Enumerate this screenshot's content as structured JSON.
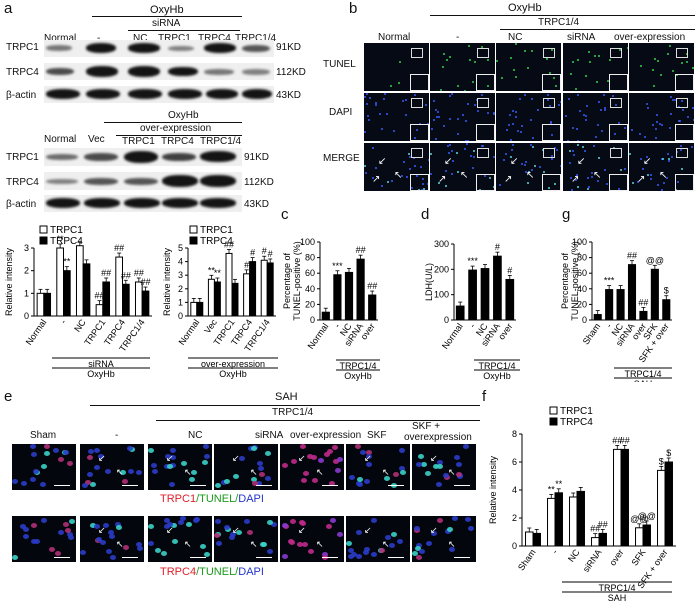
{
  "panels": {
    "a": "a",
    "b": "b",
    "c": "c",
    "d": "d",
    "e": "e",
    "f": "f",
    "g": "g"
  },
  "a_top": {
    "oxyhb": "OxyHb",
    "sirna": "siRNA",
    "lanes": [
      "Normal",
      "-",
      "NC",
      "TRPC1",
      "TRPC4",
      "TRPC1/4"
    ],
    "rows": [
      "TRPC1",
      "TRPC4",
      "β-actin"
    ],
    "kd": [
      "91KD",
      "112KD",
      "43KD"
    ]
  },
  "a_bottom": {
    "oxyhb": "OxyHb",
    "overexp": "over-expression",
    "lanes": [
      "Normal",
      "Vec",
      "TRPC1",
      "TRPC4",
      "TRPC1/4"
    ],
    "rows": [
      "TRPC1",
      "TRPC4",
      "β-actin"
    ],
    "kd": [
      "91KD",
      "112KD",
      "43KD"
    ]
  },
  "b": {
    "oxyhb": "OxyHb",
    "trpc14": "TRPC1/4",
    "cols": [
      "Normal",
      "-",
      "NC",
      "siRNA",
      "over-expression"
    ],
    "rows": [
      "TUNEL",
      "DAPI",
      "MERGE"
    ]
  },
  "e": {
    "sah": "SAH",
    "trpc14": "TRPC1/4",
    "cols": [
      "Sham",
      "-",
      "NC",
      "siRNA",
      "over-expression",
      "SKF",
      "SKF +",
      "overexpression"
    ],
    "row1_label": {
      "a": "TRPC1",
      "b": "/TUNEL/",
      "c": "DAPI"
    },
    "row2_label": {
      "a": "TRPC4",
      "b": "/TUNEL/",
      "c": "DAPI"
    },
    "colors": {
      "red": "#e0202a",
      "green": "#1a9a1a",
      "blue": "#2233cc"
    }
  },
  "chart_data": [
    {
      "id": "a-left",
      "type": "bar",
      "ylabel": "Relative intensity",
      "ylim": [
        0,
        3
      ],
      "yticks": [
        0,
        1,
        2,
        3
      ],
      "categories": [
        "Normal",
        "-",
        "NC",
        "TRPC1",
        "TRPC4",
        "TRPC1/4"
      ],
      "series": [
        {
          "name": "TRPC1",
          "values": [
            1.0,
            3.0,
            3.1,
            0.5,
            2.6,
            1.5
          ]
        },
        {
          "name": "TRPC4",
          "values": [
            1.0,
            2.0,
            2.3,
            1.5,
            1.4,
            1.1
          ]
        }
      ],
      "sig": [
        "",
        "**",
        "",
        "##",
        "##",
        "##"
      ],
      "sig2": [
        "",
        "**",
        "",
        "##",
        "##",
        "##"
      ],
      "group_labels": [
        "siRNA",
        "OxyHb"
      ]
    },
    {
      "id": "a-right",
      "type": "bar",
      "ylabel": "Relative intensity",
      "ylim": [
        0,
        5
      ],
      "yticks": [
        0,
        1,
        2,
        3,
        4,
        5
      ],
      "categories": [
        "Normal",
        "Vec",
        "TRPC1",
        "TRPC4",
        "TRPC1/4"
      ],
      "series": [
        {
          "name": "TRPC1",
          "values": [
            1.0,
            2.7,
            4.6,
            3.1,
            4.1
          ]
        },
        {
          "name": "TRPC4",
          "values": [
            1.0,
            2.5,
            2.4,
            4.0,
            3.9
          ]
        }
      ],
      "sig": [
        "",
        "**",
        "##",
        "#",
        "#"
      ],
      "sig2": [
        "",
        "**",
        "",
        "#",
        "#"
      ],
      "group_labels": [
        "over-expression",
        "OxyHb"
      ]
    },
    {
      "id": "c",
      "type": "bar",
      "ylabel": "Percentage of TUNEL-positive (%)",
      "ylim": [
        0,
        100
      ],
      "yticks": [
        0,
        20,
        40,
        60,
        80,
        100
      ],
      "categories": [
        "Normal",
        "-",
        "NC",
        "siRNA",
        "over"
      ],
      "values": [
        10,
        58,
        61,
        78,
        32
      ],
      "sig": [
        "",
        "***",
        "",
        "##",
        "##"
      ],
      "group_labels": [
        "TRPC1/4",
        "OxyHb"
      ]
    },
    {
      "id": "d",
      "type": "bar",
      "ylabel": "LDH(U/L)",
      "ylim": [
        0,
        300
      ],
      "yticks": [
        0,
        100,
        200,
        300
      ],
      "categories": [
        "Normal",
        "-",
        "NC",
        "siRNA",
        "over"
      ],
      "values": [
        55,
        197,
        203,
        252,
        160
      ],
      "sig": [
        "",
        "***",
        "",
        "#",
        "#"
      ],
      "group_labels": [
        "TRPC1/4",
        "OxyHb"
      ]
    },
    {
      "id": "g",
      "type": "bar",
      "ylabel": "Percentage of TUNEL-positive (%)",
      "ylim": [
        0,
        100
      ],
      "yticks": [
        0,
        20,
        40,
        60,
        80,
        100
      ],
      "categories": [
        "Sham",
        "-",
        "NC",
        "siRNA",
        "over",
        "SFK",
        "SFK + over"
      ],
      "values": [
        7,
        39,
        39,
        71,
        11,
        65,
        26
      ],
      "sig": [
        "",
        "***",
        "",
        "##",
        "##",
        "@@",
        "$"
      ],
      "group_labels": [
        "TRPC1/4",
        "SAH"
      ]
    },
    {
      "id": "f",
      "type": "bar",
      "ylabel": "Relative intensity",
      "ylim": [
        0,
        8
      ],
      "yticks": [
        0,
        2,
        4,
        6,
        8
      ],
      "categories": [
        "Sham",
        "-",
        "NC",
        "siRNA",
        "over",
        "SFK",
        "SFK + over"
      ],
      "series": [
        {
          "name": "TRPC1",
          "values": [
            1.0,
            3.4,
            3.5,
            0.6,
            6.9,
            1.3,
            5.4
          ]
        },
        {
          "name": "TRPC4",
          "values": [
            0.9,
            3.8,
            3.9,
            0.9,
            6.9,
            1.5,
            6.0
          ]
        }
      ],
      "sig": [
        "",
        "**",
        "",
        "##",
        "##",
        "@@",
        "$"
      ],
      "sig2": [
        "",
        "**",
        "",
        "##",
        "##",
        "@@",
        "$"
      ],
      "group_labels": [
        "TRPC1/4",
        "SAH"
      ]
    }
  ]
}
